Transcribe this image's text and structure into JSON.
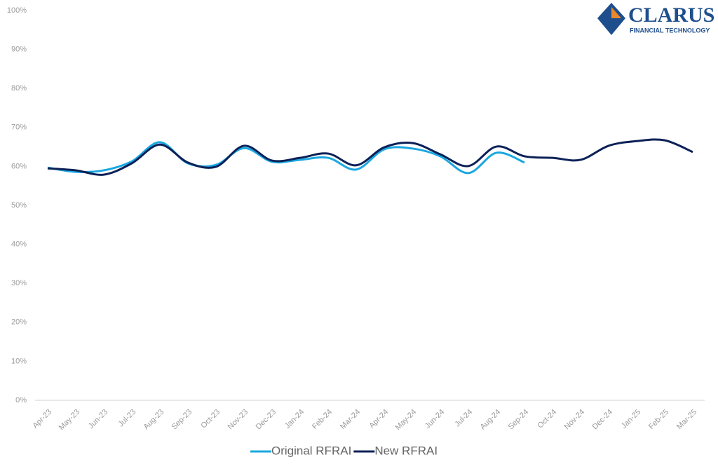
{
  "chart_data": {
    "type": "line",
    "categories": [
      "Apr-23",
      "May-23",
      "Jun-23",
      "Jul-23",
      "Aug-23",
      "Sep-23",
      "Oct-23",
      "Nov-23",
      "Dec-23",
      "Jan-24",
      "Feb-24",
      "Mar-24",
      "Apr-24",
      "May-24",
      "Jun-24",
      "Jul-24",
      "Aug-24",
      "Sep-24",
      "Oct-24",
      "Nov-24",
      "Dec-24",
      "Jan-25",
      "Feb-25",
      "Mar-25"
    ],
    "series": [
      {
        "name": "Original RFRAI",
        "color": "#1aa7e0",
        "values": [
          59.7,
          58.6,
          59,
          61.3,
          66.2,
          60.8,
          60.4,
          64.7,
          61.2,
          61.7,
          62.2,
          59.2,
          64.4,
          64.6,
          62.6,
          58.3,
          63.5,
          61,
          null,
          null,
          null,
          null,
          null,
          null
        ]
      },
      {
        "name": "New RFRAI",
        "color": "#0c2157",
        "values": [
          59.5,
          59,
          57.9,
          60.8,
          65.6,
          61,
          59.9,
          65.3,
          61.5,
          62.2,
          63.3,
          60.3,
          64.9,
          66,
          63.1,
          60.1,
          65.1,
          62.6,
          62.2,
          61.7,
          65.3,
          66.5,
          66.7,
          63.7
        ]
      }
    ],
    "ylim": [
      0,
      100
    ],
    "yticks": [
      {
        "value": 0,
        "label": "0%"
      },
      {
        "value": 10,
        "label": "10%"
      },
      {
        "value": 20,
        "label": "20%"
      },
      {
        "value": 30,
        "label": "30%"
      },
      {
        "value": 40,
        "label": "40%"
      },
      {
        "value": 50,
        "label": "50%"
      },
      {
        "value": 60,
        "label": "60%"
      },
      {
        "value": 70,
        "label": "70%"
      },
      {
        "value": 80,
        "label": "80%"
      },
      {
        "value": 90,
        "label": "90%"
      },
      {
        "value": 100,
        "label": "100%"
      }
    ],
    "grid": false,
    "legend": "bottom"
  },
  "logo": {
    "name": "CLARUS",
    "tagline": "FINANCIAL TECHNOLOGY"
  }
}
